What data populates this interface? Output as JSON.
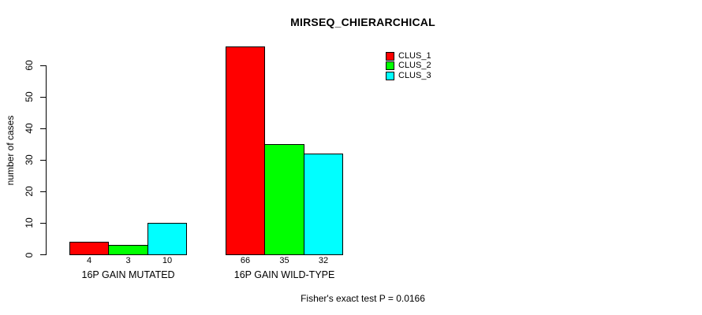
{
  "chart_data": {
    "type": "bar",
    "title": "MIRSEQ_CHIERARCHICAL",
    "ylabel": "number of cases",
    "xlabel": "",
    "categories": [
      "16P GAIN MUTATED",
      "16P GAIN WILD-TYPE"
    ],
    "series": [
      {
        "name": "CLUS_1",
        "color": "#FF0000",
        "values": [
          4,
          66
        ]
      },
      {
        "name": "CLUS_2",
        "color": "#00FF00",
        "values": [
          3,
          35
        ]
      },
      {
        "name": "CLUS_3",
        "color": "#00FFFF",
        "values": [
          10,
          32
        ]
      }
    ],
    "yticks": [
      0,
      10,
      20,
      30,
      40,
      50,
      60
    ],
    "ylim": [
      0,
      66
    ],
    "grid": false,
    "legend_position": "top-right",
    "bar_value_labels_shown": true,
    "annotation": "Fisher's exact test P = 0.0166"
  }
}
